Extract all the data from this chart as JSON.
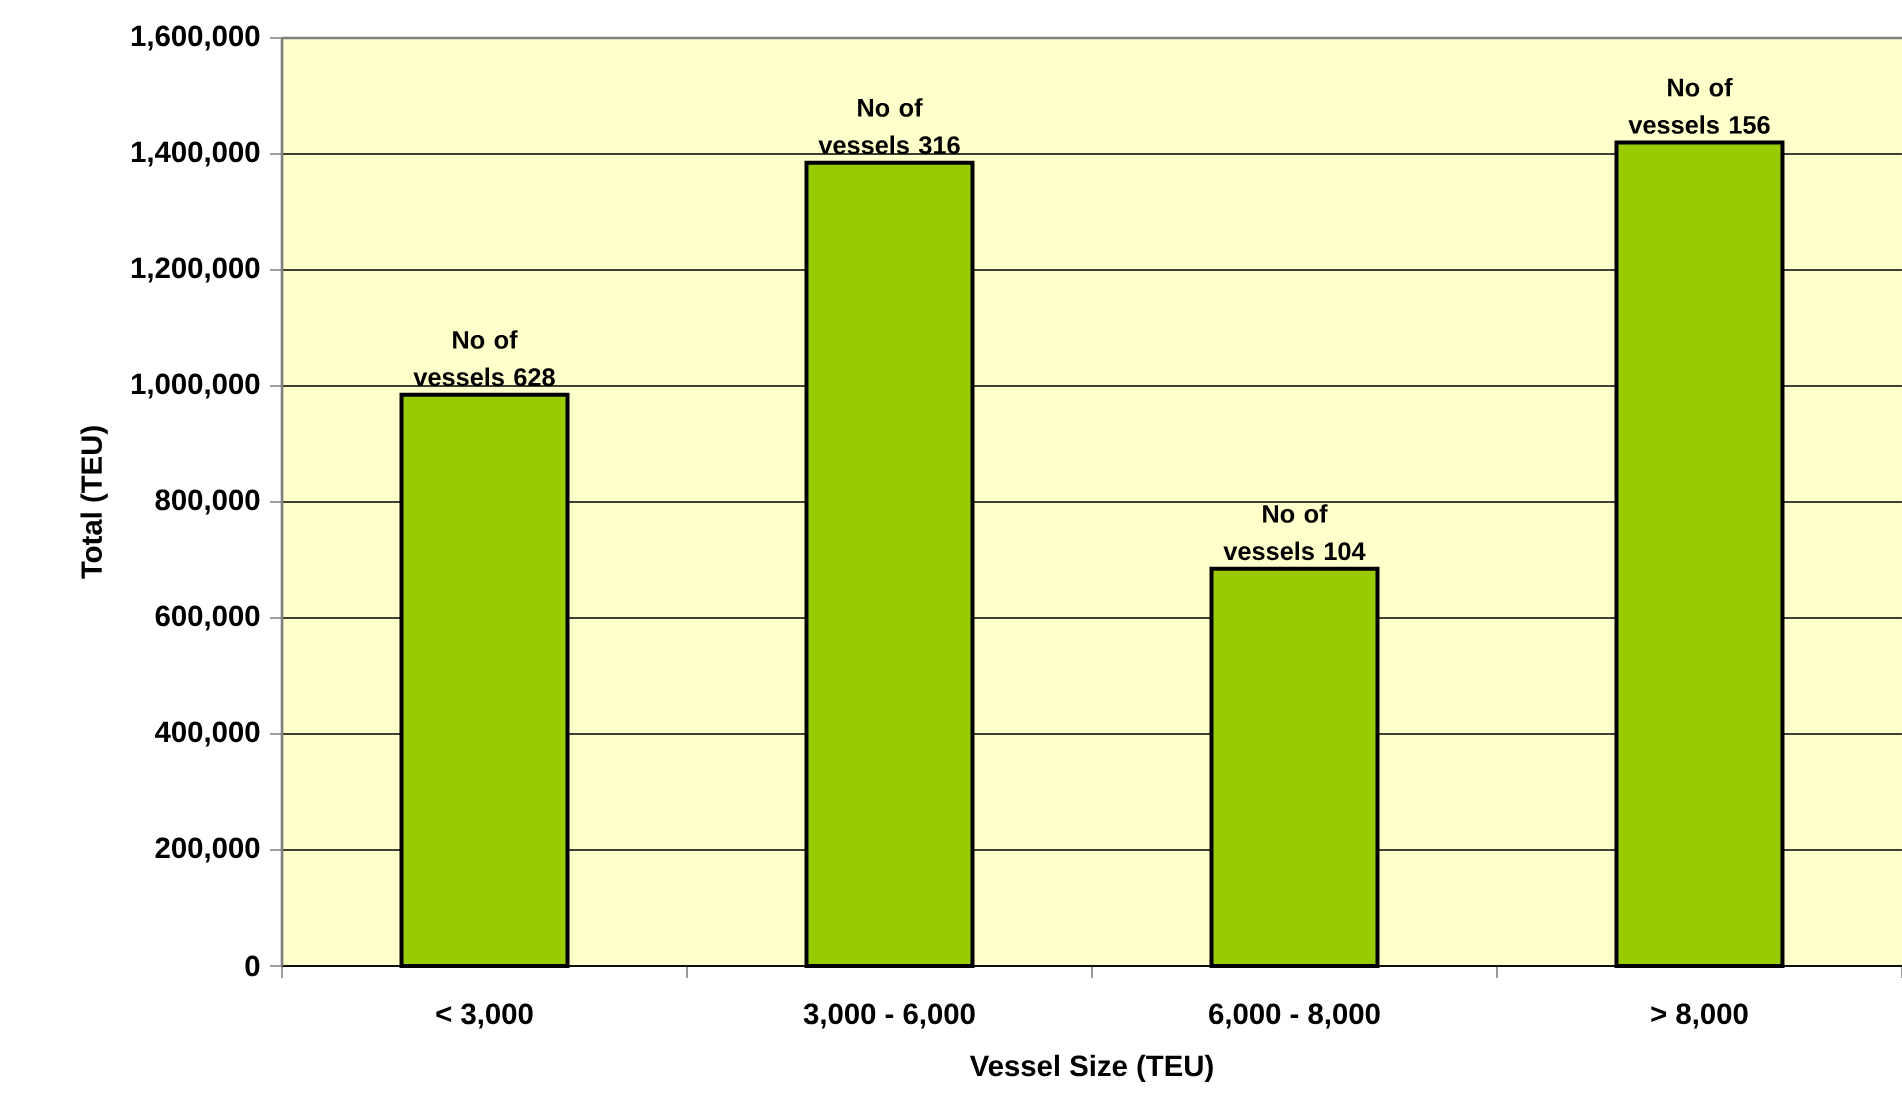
{
  "chart_data": {
    "type": "bar",
    "xlabel": "Vessel Size (TEU)",
    "ylabel": "Total (TEU)",
    "categories": [
      "< 3,000",
      "3,000 - 6,000",
      "6,000 - 8,000",
      "> 8,000"
    ],
    "values": [
      985000,
      1385000,
      685000,
      1420000
    ],
    "color": "#99cc00",
    "ylim": [
      0,
      1600000
    ],
    "yticks": [
      {
        "value": 0,
        "label": "0"
      },
      {
        "value": 200000,
        "label": "200,000"
      },
      {
        "value": 400000,
        "label": "400,000"
      },
      {
        "value": 600000,
        "label": "600,000"
      },
      {
        "value": 800000,
        "label": "800,000"
      },
      {
        "value": 1000000,
        "label": "1,000,000"
      },
      {
        "value": 1200000,
        "label": "1,200,000"
      },
      {
        "value": 1400000,
        "label": "1,400,000"
      },
      {
        "value": 1600000,
        "label": "1,600,000"
      }
    ],
    "grid": "y",
    "annotations": [
      {
        "text": "No of vessels 628",
        "x": "< 3,000",
        "y": 985000
      },
      {
        "text": "No of vessels 316",
        "x": "3,000 - 6,000",
        "y": 1385000
      },
      {
        "text": "No of vessels 104",
        "x": "6,000 - 8,000",
        "y": 685000
      },
      {
        "text": "No of vessels 156",
        "x": "> 8,000",
        "y": 1420000
      }
    ]
  }
}
